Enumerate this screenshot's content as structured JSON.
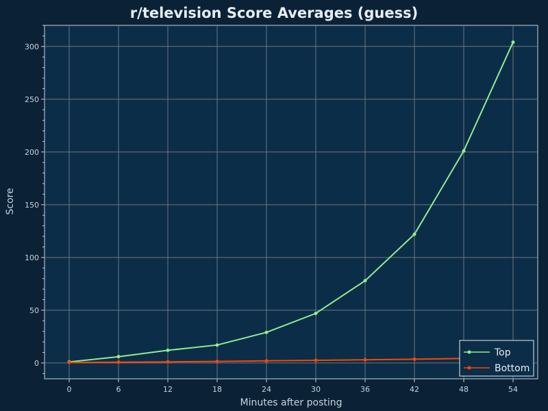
{
  "chart_data": {
    "type": "line",
    "title": "r/television Score Averages (guess)",
    "xlabel": "Minutes after posting",
    "ylabel": "Score",
    "x": [
      0,
      6,
      12,
      18,
      24,
      30,
      36,
      42,
      48,
      54
    ],
    "xlim": [
      -3,
      57
    ],
    "ylim": [
      -15,
      320
    ],
    "x_ticks": [
      0,
      6,
      12,
      18,
      24,
      30,
      36,
      42,
      48,
      54
    ],
    "y_ticks": [
      0,
      50,
      100,
      150,
      200,
      250,
      300
    ],
    "grid": true,
    "legend_position": "bottom-right",
    "series": [
      {
        "name": "Top",
        "color": "#90ee90",
        "values": [
          1,
          6,
          12,
          17,
          29,
          47,
          78,
          122,
          201,
          304
        ]
      },
      {
        "name": "Bottom",
        "color": "#ff4500",
        "values": [
          0.5,
          0.8,
          1.1,
          1.5,
          2.0,
          2.5,
          3.0,
          3.6,
          4.3,
          5.0
        ]
      }
    ]
  },
  "colors": {
    "background": "#0b2236",
    "plot_background": "#0c2d48",
    "grid": "#6b7680",
    "axis": "#c9d3dc"
  }
}
